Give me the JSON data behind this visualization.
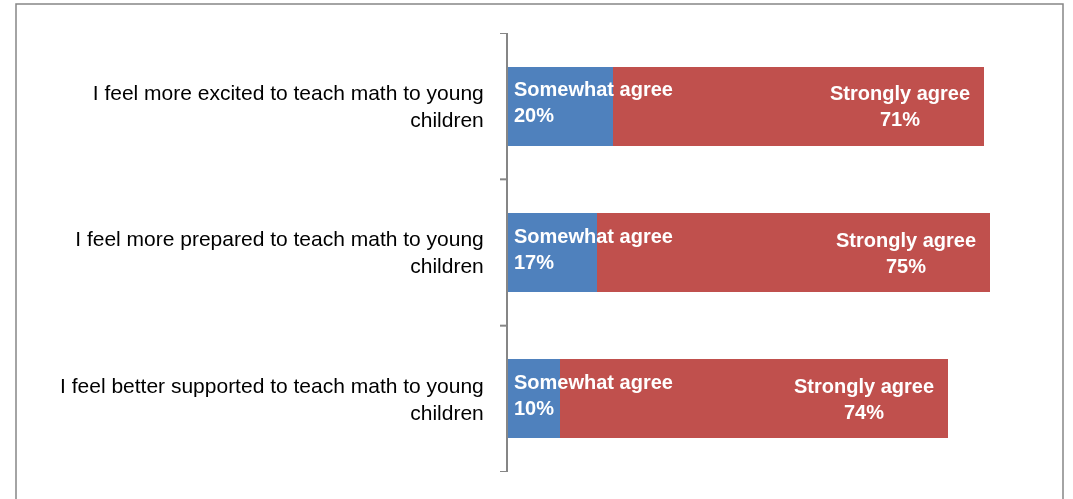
{
  "chart_data": {
    "type": "bar",
    "orientation": "horizontal",
    "stacked": true,
    "categories": [
      "I feel more excited to teach math to young children",
      "I feel more prepared to teach math to young children",
      "I feel better supported to teach math to young children"
    ],
    "series": [
      {
        "name": "Somewhat agree",
        "color": "#4f81bd",
        "values": [
          20,
          17,
          10
        ],
        "value_labels": [
          "20%",
          "17%",
          "10%"
        ]
      },
      {
        "name": "Strongly agree",
        "color": "#c0504d",
        "values": [
          71,
          75,
          74
        ],
        "value_labels": [
          "71%",
          "75%",
          "74%"
        ]
      }
    ],
    "tick_labels": "y",
    "legend": false
  }
}
